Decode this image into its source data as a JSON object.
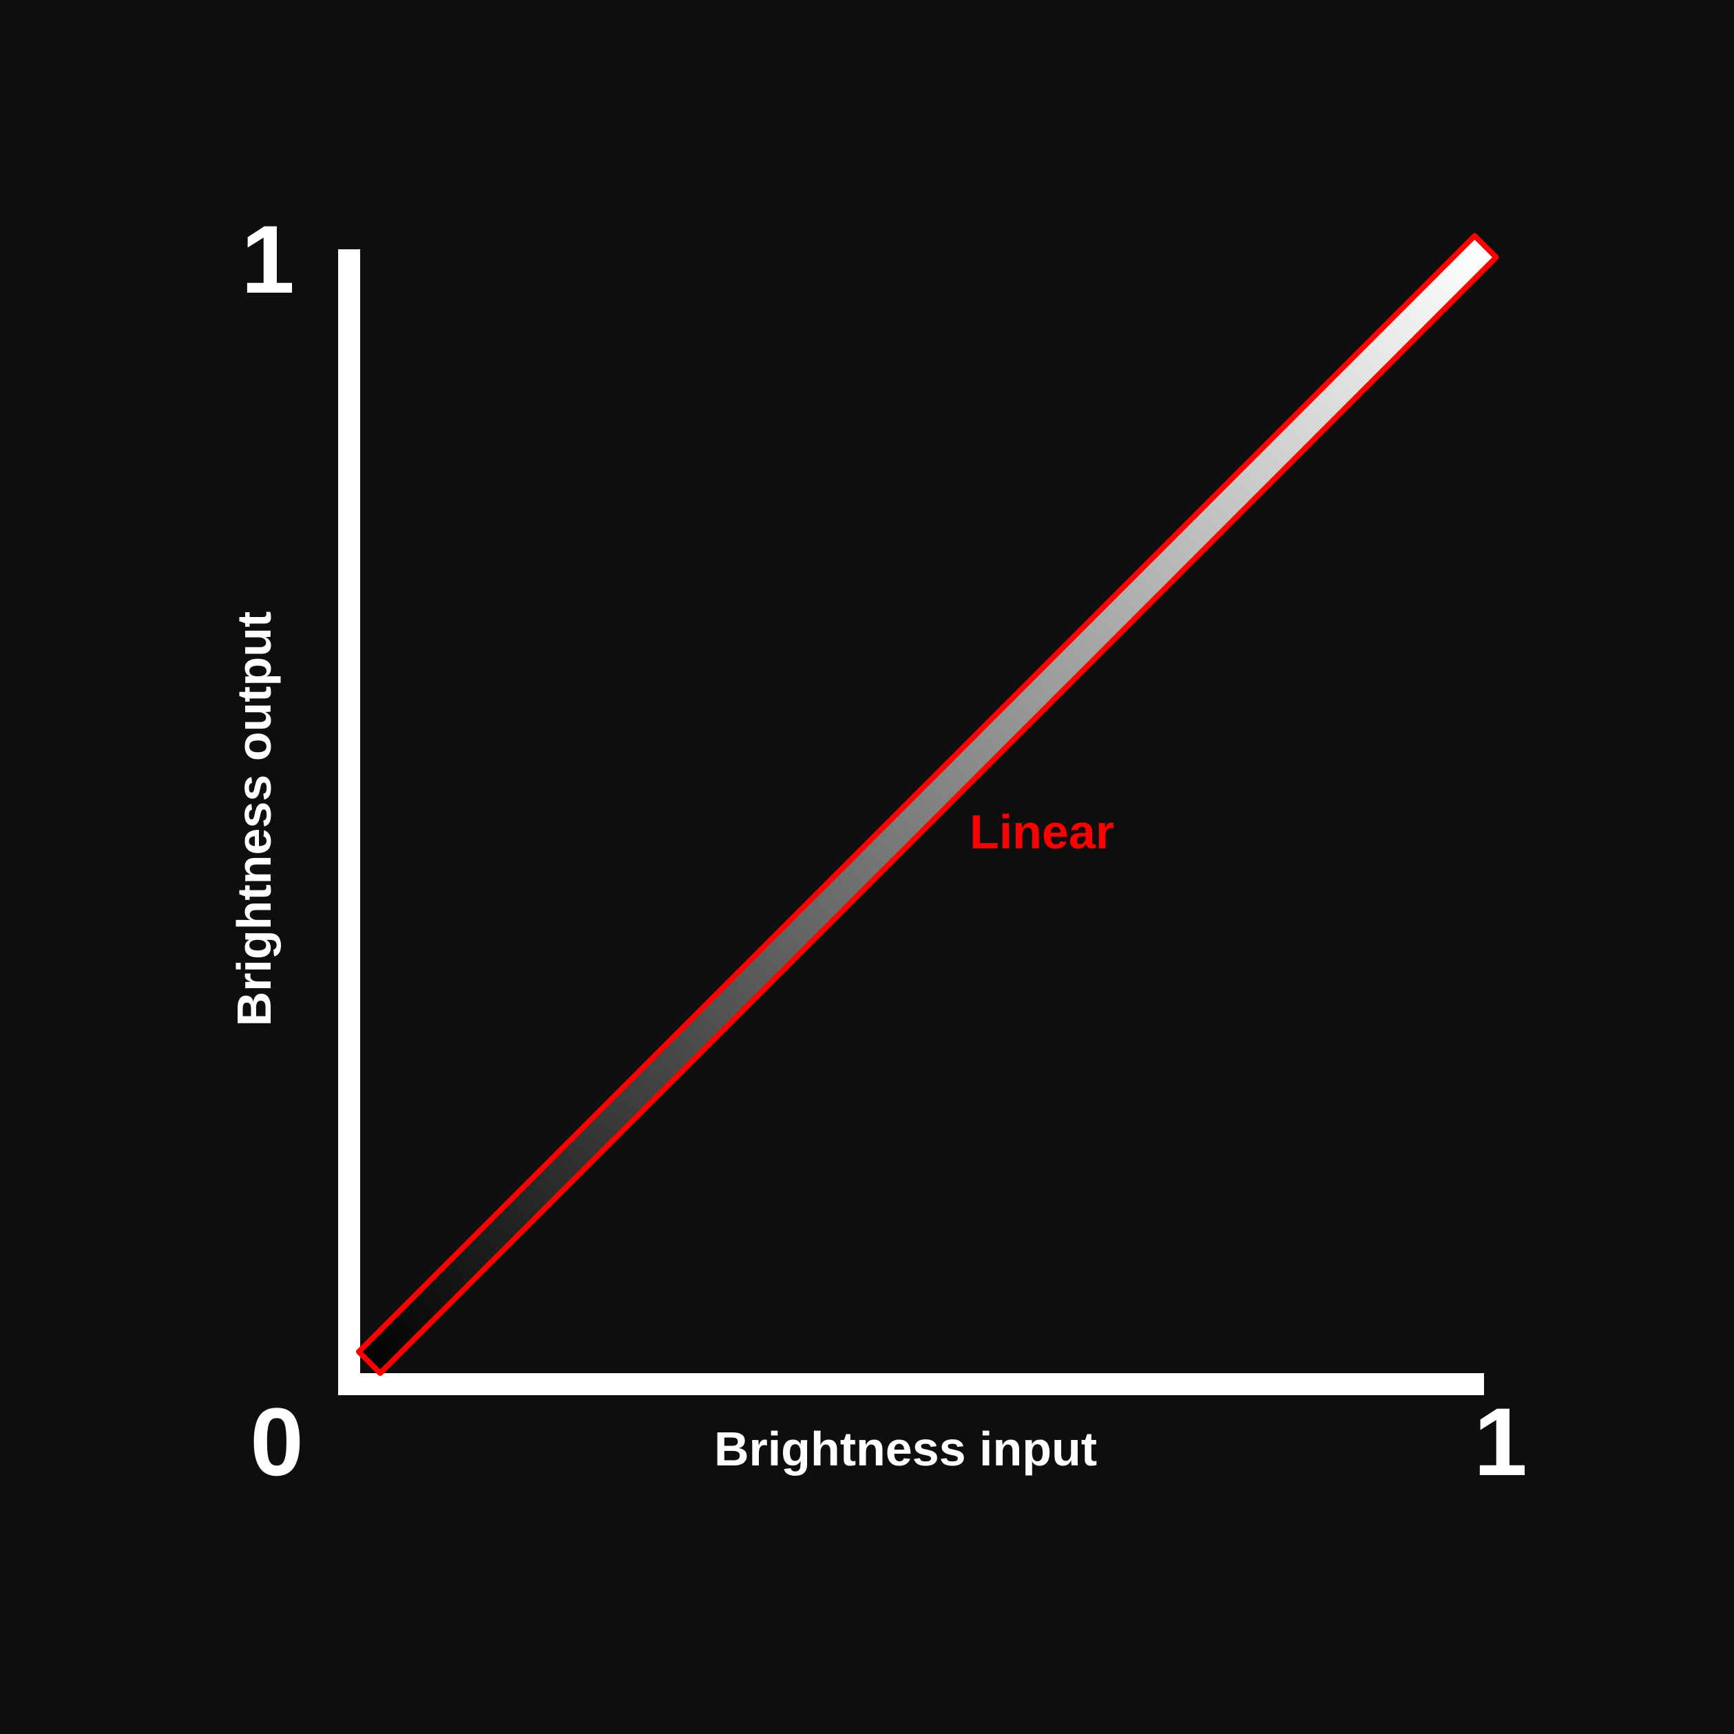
{
  "chart_data": {
    "type": "line",
    "x": [
      0,
      1
    ],
    "series": [
      {
        "name": "Linear",
        "values": [
          0,
          1
        ],
        "outline_color": "#ff0000",
        "gradient_start": "#000000",
        "gradient_end": "#ffffff"
      }
    ],
    "xlabel": "Brightness input",
    "ylabel": "Brightness output",
    "xlim": [
      0,
      1
    ],
    "ylim": [
      0,
      1
    ],
    "x_ticks": [
      "0",
      "1"
    ],
    "y_ticks": [
      "1"
    ],
    "grid": false,
    "legend": "inline",
    "colors": {
      "background": "#0e0e0f",
      "axis": "#ffffff",
      "text": "#ffffff"
    }
  }
}
